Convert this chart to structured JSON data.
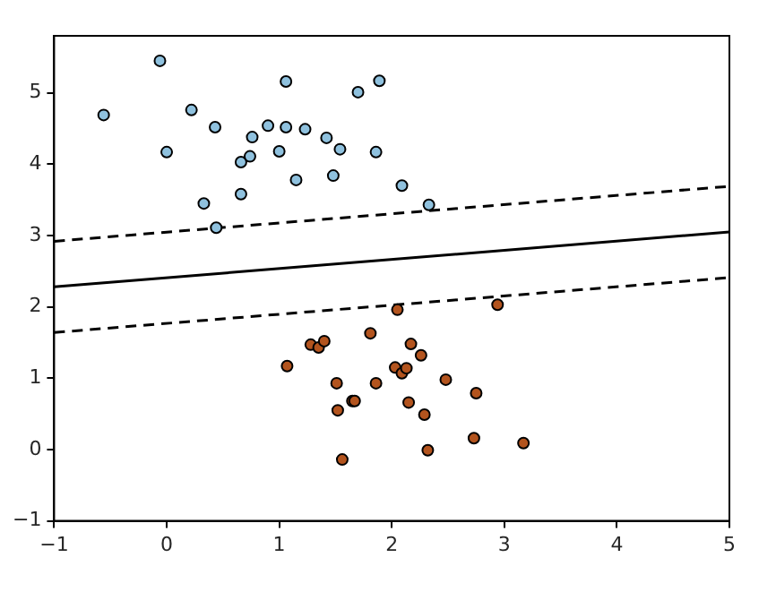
{
  "chart_data": {
    "type": "scatter",
    "xlim": [
      -1,
      5
    ],
    "xticks": [
      -1,
      0,
      1,
      2,
      3,
      4,
      5
    ],
    "ylim": [
      -1,
      5.8
    ],
    "yticks": [
      -1,
      0,
      1,
      2,
      3,
      4,
      5
    ],
    "grid": false,
    "legend": false,
    "marker": "circle",
    "series": [
      {
        "type": "scatter",
        "color": "#8fc1de",
        "x": [
          -0.56,
          -0.06,
          0.0,
          0.22,
          0.43,
          0.33,
          0.44,
          0.66,
          0.74,
          0.66,
          0.76,
          0.9,
          1.06,
          1.06,
          1.0,
          1.23,
          1.15,
          1.42,
          1.54,
          1.48,
          1.7,
          1.89,
          1.86,
          2.09,
          2.33
        ],
        "values": [
          4.69,
          5.45,
          4.17,
          4.76,
          4.52,
          3.45,
          3.11,
          4.03,
          4.11,
          3.58,
          4.38,
          4.54,
          4.52,
          5.16,
          4.18,
          4.49,
          3.78,
          4.37,
          4.21,
          3.84,
          5.01,
          5.17,
          4.17,
          3.7,
          3.43
        ]
      },
      {
        "type": "scatter",
        "color": "#b3541e",
        "x": [
          2.05,
          2.94,
          1.28,
          1.35,
          1.4,
          1.81,
          1.07,
          2.17,
          2.26,
          2.03,
          2.09,
          2.13,
          1.51,
          1.86,
          2.48,
          2.75,
          1.65,
          1.67,
          1.52,
          2.15,
          2.29,
          2.73,
          3.17,
          2.32,
          1.56
        ],
        "values": [
          1.96,
          2.03,
          1.47,
          1.43,
          1.52,
          1.63,
          1.17,
          1.48,
          1.32,
          1.15,
          1.07,
          1.14,
          0.93,
          0.93,
          0.98,
          0.79,
          0.68,
          0.68,
          0.55,
          0.66,
          0.49,
          0.16,
          0.09,
          -0.01,
          -0.14
        ]
      },
      {
        "type": "line",
        "color": "#000000",
        "line_style": "solid",
        "marker": "none",
        "x": [
          -1,
          5
        ],
        "values": [
          2.28,
          3.05
        ]
      },
      {
        "type": "line",
        "color": "#000000",
        "line_style": "dashed",
        "marker": "none",
        "x": [
          -1,
          5
        ],
        "values": [
          2.92,
          3.69
        ]
      },
      {
        "type": "line",
        "color": "#000000",
        "line_style": "dashed",
        "marker": "none",
        "x": [
          -1,
          5
        ],
        "values": [
          1.64,
          2.41
        ]
      }
    ]
  }
}
